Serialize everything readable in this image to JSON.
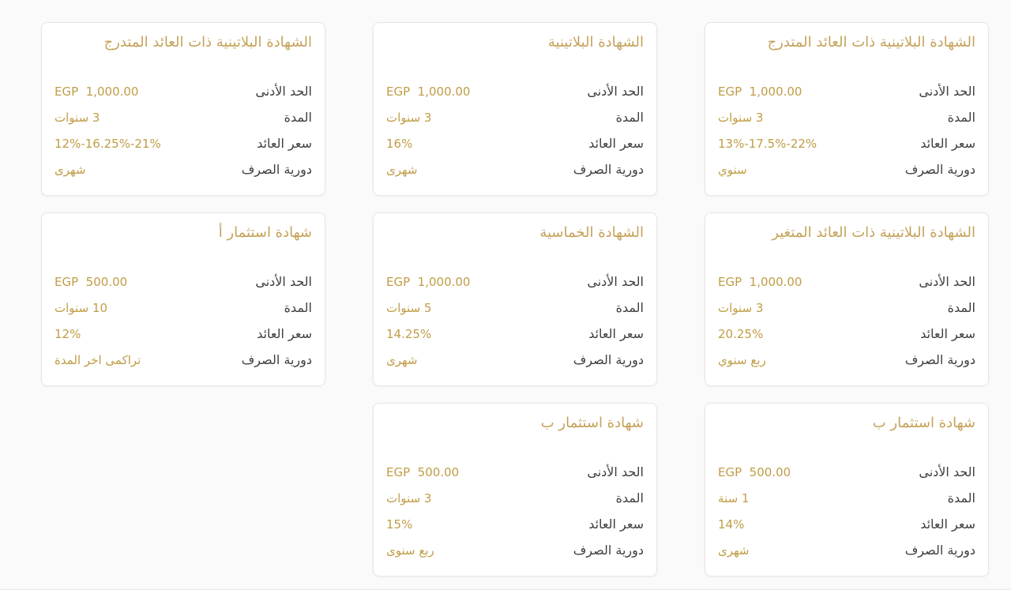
{
  "colors": {
    "title_gold": "#C5A25A",
    "value_gold": "#C09D46",
    "label_dark": "#3E3E3E",
    "card_border": "#E7E6E3",
    "card_background": "#FFFFFF",
    "page_background": "#FAFAFA"
  },
  "cards": [
    {
      "title": "الشهادة البلاتينية ذات العائد المتدرج",
      "rows": [
        {
          "label": "الحد الأدنى",
          "value": "EGP  1,000.00"
        },
        {
          "label": "المدة",
          "value": "3 سنوات"
        },
        {
          "label": "سعر العائد",
          "value": "13%-17.5%-22%"
        },
        {
          "label": "دورية الصرف",
          "value": "سنوي"
        }
      ]
    },
    {
      "title": "الشهادة البلاتينية",
      "rows": [
        {
          "label": "الحد الأدنى",
          "value": "EGP  1,000.00"
        },
        {
          "label": "المدة",
          "value": "3 سنوات"
        },
        {
          "label": "سعر العائد",
          "value": "16%"
        },
        {
          "label": "دورية الصرف",
          "value": "شهرى"
        }
      ]
    },
    {
      "title": "الشهادة البلاتينية ذات العائد المتدرج",
      "rows": [
        {
          "label": "الحد الأدنى",
          "value": "EGP  1,000.00"
        },
        {
          "label": "المدة",
          "value": "3 سنوات"
        },
        {
          "label": "سعر العائد",
          "value": "12%-16.25%-21%"
        },
        {
          "label": "دورية الصرف",
          "value": "شهرى"
        }
      ]
    },
    {
      "title": "الشهادة البلاتينية ذات العائد المتغير",
      "rows": [
        {
          "label": "الحد الأدنى",
          "value": "EGP  1,000.00"
        },
        {
          "label": "المدة",
          "value": "3 سنوات"
        },
        {
          "label": "سعر العائد",
          "value": "20.25%"
        },
        {
          "label": "دورية الصرف",
          "value": "ربع سنوي"
        }
      ]
    },
    {
      "title": "الشهادة الخماسية",
      "rows": [
        {
          "label": "الحد الأدنى",
          "value": "EGP  1,000.00"
        },
        {
          "label": "المدة",
          "value": "5 سنوات"
        },
        {
          "label": "سعر العائد",
          "value": "14.25%"
        },
        {
          "label": "دورية الصرف",
          "value": "شهرى"
        }
      ]
    },
    {
      "title": "شهادة استثمار أ",
      "rows": [
        {
          "label": "الحد الأدنى",
          "value": "EGP  500.00"
        },
        {
          "label": "المدة",
          "value": "10 سنوات"
        },
        {
          "label": "سعر العائد",
          "value": "12%"
        },
        {
          "label": "دورية الصرف",
          "value": "تراكمى اخر المدة"
        }
      ]
    },
    {
      "title": "شهادة استثمار ب",
      "rows": [
        {
          "label": "الحد الأدنى",
          "value": "EGP  500.00"
        },
        {
          "label": "المدة",
          "value": "1 سنة"
        },
        {
          "label": "سعر العائد",
          "value": "14%"
        },
        {
          "label": "دورية الصرف",
          "value": "شهرى"
        }
      ]
    },
    {
      "title": "شهادة استثمار ب",
      "rows": [
        {
          "label": "الحد الأدنى",
          "value": "EGP  500.00"
        },
        {
          "label": "المدة",
          "value": "3 سنوات"
        },
        {
          "label": "سعر العائد",
          "value": "15%"
        },
        {
          "label": "دورية الصرف",
          "value": "ربع سنوى"
        }
      ]
    }
  ]
}
